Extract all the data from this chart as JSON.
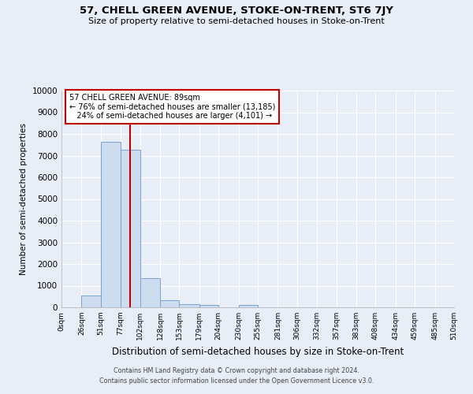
{
  "title": "57, CHELL GREEN AVENUE, STOKE-ON-TRENT, ST6 7JY",
  "subtitle": "Size of property relative to semi-detached houses in Stoke-on-Trent",
  "xlabel": "Distribution of semi-detached houses by size in Stoke-on-Trent",
  "ylabel": "Number of semi-detached properties",
  "footer1": "Contains HM Land Registry data © Crown copyright and database right 2024.",
  "footer2": "Contains public sector information licensed under the Open Government Licence v3.0.",
  "bin_edges": [
    0,
    26,
    51,
    77,
    102,
    128,
    153,
    179,
    204,
    230,
    255,
    281,
    306,
    332,
    357,
    383,
    408,
    434,
    459,
    485,
    510
  ],
  "bar_heights": [
    0,
    550,
    7650,
    7280,
    1330,
    330,
    150,
    100,
    0,
    100,
    0,
    0,
    0,
    0,
    0,
    0,
    0,
    0,
    0,
    0
  ],
  "bar_color": "#cddcef",
  "bar_edge_color": "#7ba3d0",
  "property_size": 89,
  "property_label": "57 CHELL GREEN AVENUE: 89sqm",
  "pct_smaller": 76,
  "n_smaller": 13185,
  "pct_larger": 24,
  "n_larger": 4101,
  "vline_color": "#c00000",
  "annotation_box_edge_color": "#c00000",
  "ylim": [
    0,
    10000
  ],
  "yticks": [
    0,
    1000,
    2000,
    3000,
    4000,
    5000,
    6000,
    7000,
    8000,
    9000,
    10000
  ],
  "tick_labels": [
    "0sqm",
    "26sqm",
    "51sqm",
    "77sqm",
    "102sqm",
    "128sqm",
    "153sqm",
    "179sqm",
    "204sqm",
    "230sqm",
    "255sqm",
    "281sqm",
    "306sqm",
    "332sqm",
    "357sqm",
    "383sqm",
    "408sqm",
    "434sqm",
    "459sqm",
    "485sqm",
    "510sqm"
  ],
  "bg_color": "#e8eef8",
  "plot_bg_color": "#e8eef8",
  "grid_color": "#ffffff"
}
